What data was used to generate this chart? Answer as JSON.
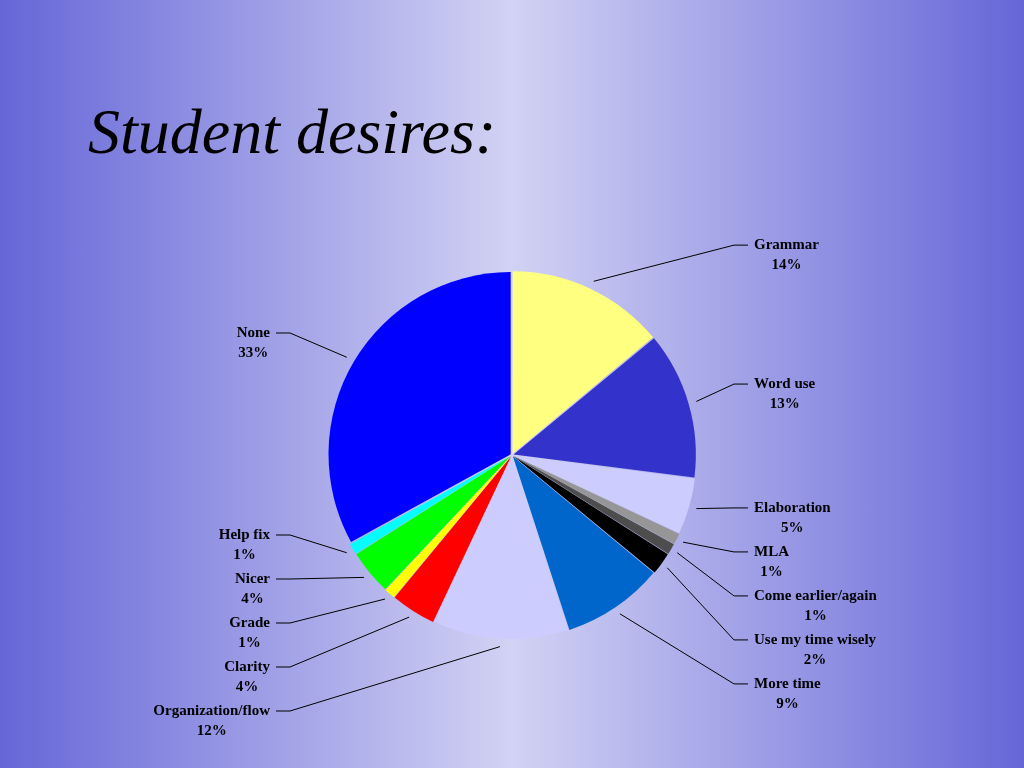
{
  "chart_data": {
    "type": "pie",
    "title": "Student desires:",
    "categories": [
      "Grammar",
      "Word use",
      "Elaboration",
      "MLA",
      "Come earlier/again",
      "Use my time wisely",
      "More time",
      "Organization/flow",
      "Clarity",
      "Grade",
      "Nicer",
      "Help fix",
      "None"
    ],
    "values": [
      14,
      13,
      5,
      1,
      1,
      2,
      9,
      12,
      4,
      1,
      4,
      1,
      33
    ],
    "value_labels": [
      "14%",
      "13%",
      "5%",
      "1%",
      "1%",
      "2%",
      "9%",
      "12%",
      "4%",
      "1%",
      "4%",
      "1%",
      "33%"
    ],
    "colors": [
      "#ffff80",
      "#3333cc",
      "#ccccff",
      "#969696",
      "#4d4d4d",
      "#000000",
      "#0066cc",
      "#ccccff",
      "#ff0000",
      "#ffff00",
      "#00ff00",
      "#00ffff",
      "#0000ff"
    ]
  }
}
